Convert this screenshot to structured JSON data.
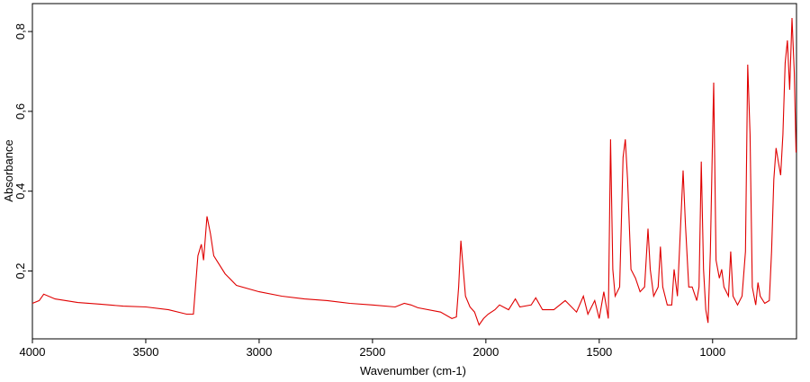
{
  "chart_data": {
    "type": "line",
    "xlabel": "Wavenumber (cm-1)",
    "ylabel": "Absorbance",
    "xlim": [
      4000,
      630
    ],
    "ylim": [
      0.03,
      0.87
    ],
    "xticks": [
      4000,
      3500,
      3000,
      2500,
      2000,
      1500,
      1000
    ],
    "yticks": [
      {
        "value": 0.2,
        "label": "0,2"
      },
      {
        "value": 0.4,
        "label": "0,4"
      },
      {
        "value": 0.6,
        "label": "0,6"
      },
      {
        "value": 0.8,
        "label": "0,8"
      }
    ],
    "series": [
      {
        "color": "#e00000",
        "x": [
          4000,
          3970,
          3950,
          3900,
          3800,
          3700,
          3600,
          3500,
          3400,
          3320,
          3290,
          3270,
          3255,
          3245,
          3230,
          3215,
          3200,
          3150,
          3100,
          3000,
          2900,
          2800,
          2700,
          2600,
          2500,
          2400,
          2360,
          2330,
          2300,
          2200,
          2150,
          2130,
          2120,
          2110,
          2100,
          2090,
          2070,
          2050,
          2030,
          2010,
          1990,
          1960,
          1940,
          1900,
          1870,
          1850,
          1800,
          1780,
          1750,
          1700,
          1650,
          1600,
          1570,
          1550,
          1520,
          1500,
          1480,
          1470,
          1460,
          1450,
          1440,
          1430,
          1410,
          1395,
          1385,
          1375,
          1360,
          1340,
          1320,
          1300,
          1285,
          1275,
          1260,
          1240,
          1230,
          1220,
          1200,
          1180,
          1170,
          1155,
          1140,
          1130,
          1120,
          1105,
          1090,
          1070,
          1060,
          1050,
          1040,
          1030,
          1020,
          1010,
          1000,
          995,
          985,
          970,
          960,
          950,
          930,
          920,
          910,
          890,
          870,
          855,
          845,
          835,
          825,
          810,
          800,
          790,
          770,
          750,
          740,
          730,
          720,
          710,
          700,
          690,
          680,
          670,
          660,
          650,
          640,
          632
        ],
        "values": [
          0.119,
          0.126,
          0.142,
          0.13,
          0.121,
          0.117,
          0.112,
          0.11,
          0.103,
          0.092,
          0.092,
          0.238,
          0.267,
          0.227,
          0.337,
          0.294,
          0.238,
          0.193,
          0.164,
          0.148,
          0.137,
          0.13,
          0.126,
          0.119,
          0.115,
          0.11,
          0.119,
          0.115,
          0.108,
          0.097,
          0.081,
          0.085,
          0.16,
          0.276,
          0.204,
          0.137,
          0.11,
          0.097,
          0.065,
          0.081,
          0.092,
          0.103,
          0.115,
          0.103,
          0.13,
          0.11,
          0.115,
          0.133,
          0.103,
          0.103,
          0.126,
          0.097,
          0.137,
          0.092,
          0.126,
          0.081,
          0.148,
          0.115,
          0.081,
          0.53,
          0.204,
          0.137,
          0.16,
          0.485,
          0.53,
          0.429,
          0.204,
          0.182,
          0.148,
          0.16,
          0.306,
          0.204,
          0.137,
          0.16,
          0.261,
          0.16,
          0.115,
          0.115,
          0.204,
          0.137,
          0.328,
          0.452,
          0.317,
          0.16,
          0.16,
          0.126,
          0.16,
          0.474,
          0.204,
          0.103,
          0.07,
          0.249,
          0.542,
          0.672,
          0.227,
          0.182,
          0.204,
          0.16,
          0.137,
          0.249,
          0.137,
          0.115,
          0.137,
          0.249,
          0.717,
          0.542,
          0.16,
          0.115,
          0.171,
          0.137,
          0.119,
          0.126,
          0.249,
          0.429,
          0.508,
          0.474,
          0.44,
          0.542,
          0.721,
          0.778,
          0.654,
          0.834,
          0.699,
          0.497
        ]
      }
    ]
  }
}
